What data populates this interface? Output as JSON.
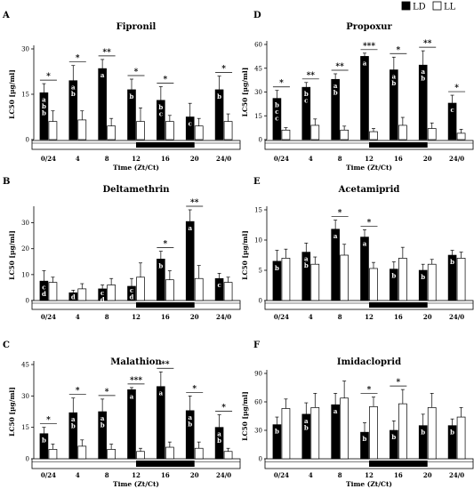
{
  "legend": [
    {
      "label": "LD",
      "color": "#000000"
    },
    {
      "label": "LL",
      "color": "#ffffff"
    }
  ],
  "chart_data": [
    {
      "letter": "A",
      "title": "Fipronil",
      "type": "bar",
      "ylabel": "LC50 [µg/ml]",
      "xlabel": "Time (Zt/Ct)",
      "ylim": [
        0,
        30
      ],
      "yticks": [
        0,
        15,
        30
      ],
      "categories": [
        "0/24",
        "4",
        "8",
        "12",
        "16",
        "20",
        "24/0"
      ],
      "light_dark_bar": "light 0–12, dark 12–20, light 20–24",
      "series": [
        {
          "name": "LD",
          "values": [
            15.5,
            19.5,
            23.5,
            16.5,
            13,
            7.5,
            16.5
          ],
          "errors": [
            3,
            5,
            3,
            3.5,
            4.5,
            4.5,
            4.5
          ]
        },
        {
          "name": "LL",
          "values": [
            6,
            6.5,
            4.5,
            6,
            6,
            4.5,
            6
          ],
          "errors": [
            3.5,
            3,
            2.5,
            4.5,
            2,
            2.5,
            2.5
          ]
        }
      ],
      "letters_ld": [
        "a b b",
        "a b",
        "a",
        "b",
        "b c",
        "c",
        "b"
      ],
      "significance": [
        "*",
        "*",
        "**",
        "*",
        "*",
        "",
        "*"
      ]
    },
    {
      "letter": "D",
      "title": "Propoxur",
      "type": "bar",
      "ylabel": "LC50 [µg/ml]",
      "xlabel": "Time (Zt/Ct)",
      "ylim": [
        0,
        60
      ],
      "yticks": [
        0,
        15,
        30,
        45,
        60
      ],
      "categories": [
        "0/24",
        "4",
        "8",
        "12",
        "16",
        "20",
        "24/0"
      ],
      "light_dark_bar": "light 0–12, dark 12–20, light 20–24",
      "series": [
        {
          "name": "LD",
          "values": [
            26,
            33,
            38,
            52.5,
            44,
            47,
            23
          ],
          "errors": [
            5,
            3,
            3.5,
            2,
            8,
            9,
            5
          ]
        },
        {
          "name": "LL",
          "values": [
            6,
            9,
            6,
            5,
            9,
            7,
            4
          ],
          "errors": [
            1.5,
            4,
            2.5,
            2,
            5,
            3.5,
            2.5
          ]
        }
      ],
      "letters_ld": [
        "b c c",
        "b c",
        "a b",
        "a",
        "a b",
        "a b",
        "c"
      ],
      "significance": [
        "*",
        "**",
        "**",
        "***",
        "*",
        "**",
        "*"
      ]
    },
    {
      "letter": "B",
      "title": "Deltamethrin",
      "type": "bar",
      "ylabel": "LC50 [µg/ml]",
      "xlabel": "",
      "ylim": [
        0,
        35
      ],
      "yticks": [
        0,
        10,
        20,
        30
      ],
      "categories": [
        "0/24",
        "4",
        "8",
        "12",
        "16",
        "20",
        "24/0"
      ],
      "light_dark_bar": "light 0–12, dark 12–20, light 20–24",
      "series": [
        {
          "name": "LD",
          "values": [
            7.5,
            3,
            4.5,
            5.5,
            16,
            30.5,
            8.5
          ],
          "errors": [
            4,
            1,
            1.5,
            3,
            3,
            4.5,
            2
          ]
        },
        {
          "name": "LL",
          "values": [
            7,
            4.5,
            6,
            9,
            8,
            8.5,
            7
          ],
          "errors": [
            2,
            2,
            2.5,
            5.5,
            3.5,
            5,
            2
          ]
        }
      ],
      "letters_ld": [
        "c d",
        "d",
        "c d",
        "c d",
        "b",
        "a",
        "c"
      ],
      "significance": [
        "",
        "",
        "",
        "",
        "*",
        "**",
        ""
      ]
    },
    {
      "letter": "E",
      "title": "Acetamiprid",
      "type": "bar",
      "ylabel": "LC50 [µg/ml]",
      "xlabel": "",
      "ylim": [
        0,
        15
      ],
      "yticks": [
        0,
        5,
        10,
        15
      ],
      "categories": [
        "0/24",
        "4",
        "8",
        "12",
        "16",
        "20",
        "24/0"
      ],
      "light_dark_bar": "light 0–12, dark 12–20, light 20–24",
      "series": [
        {
          "name": "LD",
          "values": [
            6.5,
            8,
            11.8,
            10.5,
            5.2,
            5,
            7.5
          ],
          "errors": [
            1.8,
            1.5,
            1.5,
            1.2,
            1.2,
            1,
            0.8
          ]
        },
        {
          "name": "LL",
          "values": [
            7,
            6,
            7.5,
            5.3,
            7,
            6,
            7
          ],
          "errors": [
            1.5,
            1.2,
            1.8,
            1,
            1.8,
            0.8,
            1
          ]
        }
      ],
      "letters_ld": [
        "b",
        "a b",
        "a",
        "a",
        "b",
        "b",
        "b"
      ],
      "significance": [
        "",
        "",
        "*",
        "*",
        "",
        "",
        ""
      ]
    },
    {
      "letter": "C",
      "title": "Malathion",
      "type": "bar",
      "ylabel": "LC50 [µg/ml]",
      "xlabel": "Time (Zt/Ct)",
      "ylim": [
        0,
        45
      ],
      "yticks": [
        0,
        15,
        30,
        45
      ],
      "categories": [
        "0/24",
        "4",
        "8",
        "12",
        "16",
        "20",
        "24/0"
      ],
      "light_dark_bar": "light 0–12, dark 12–20, light 20–24",
      "series": [
        {
          "name": "LD",
          "values": [
            12,
            22,
            22.5,
            33,
            34.5,
            23,
            15
          ],
          "errors": [
            3,
            7,
            6,
            1,
            7,
            7,
            6
          ]
        },
        {
          "name": "LL",
          "values": [
            4.5,
            6,
            4.5,
            3.5,
            5.5,
            5,
            3.5
          ],
          "errors": [
            2.5,
            3,
            2.5,
            1.5,
            2.5,
            3,
            1.5
          ]
        }
      ],
      "letters_ld": [
        "b",
        "a b",
        "a b",
        "a",
        "a",
        "a b",
        "a b"
      ],
      "significance": [
        "*",
        "*",
        "*",
        "***",
        "**",
        "*",
        "*"
      ]
    },
    {
      "letter": "F",
      "title": "Imidacloprid",
      "type": "bar",
      "ylabel": "LC50 [µg/ml]",
      "xlabel": "Time (Zt/Ct)",
      "ylim": [
        0,
        90
      ],
      "yticks": [
        0,
        30,
        60,
        90
      ],
      "categories": [
        "0/24",
        "4",
        "8",
        "12",
        "16",
        "20",
        "24/0"
      ],
      "light_dark_bar": "light 0–12, dark 12–20, light 20–24",
      "series": [
        {
          "name": "LD",
          "values": [
            36,
            47,
            57,
            28,
            30,
            35,
            35
          ],
          "errors": [
            8,
            12,
            12,
            10,
            10,
            12,
            7
          ]
        },
        {
          "name": "LL",
          "values": [
            53,
            54,
            64,
            55,
            58,
            54,
            44
          ],
          "errors": [
            10,
            15,
            18,
            10,
            15,
            15,
            10
          ]
        }
      ],
      "letters_ld": [
        "b",
        "a b",
        "a",
        "b",
        "b",
        "b",
        "b"
      ],
      "significance": [
        "",
        "",
        "",
        "*",
        "*",
        "",
        ""
      ]
    }
  ]
}
